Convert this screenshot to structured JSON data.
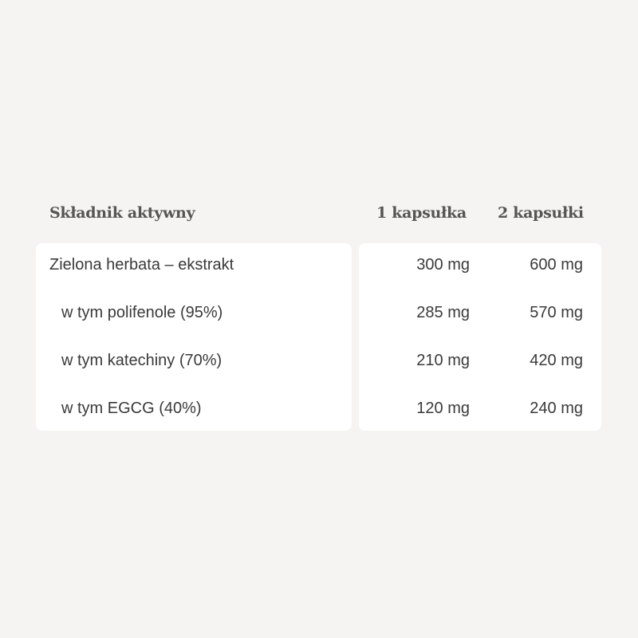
{
  "header": {
    "ingredient": "Składnik aktywny",
    "col1": "1 kapsułka",
    "col2": "2 kapsułki"
  },
  "rows": [
    {
      "name": "Zielona herbata – ekstrakt",
      "indent": false,
      "col1": "300 mg",
      "col2": "600 mg"
    },
    {
      "name": "w tym polifenole (95%)",
      "indent": true,
      "col1": "285 mg",
      "col2": "570 mg"
    },
    {
      "name": "w tym katechiny (70%)",
      "indent": true,
      "col1": "210 mg",
      "col2": "420 mg"
    },
    {
      "name": "w tym EGCG (40%)",
      "indent": true,
      "col1": "120 mg",
      "col2": "240 mg"
    }
  ]
}
